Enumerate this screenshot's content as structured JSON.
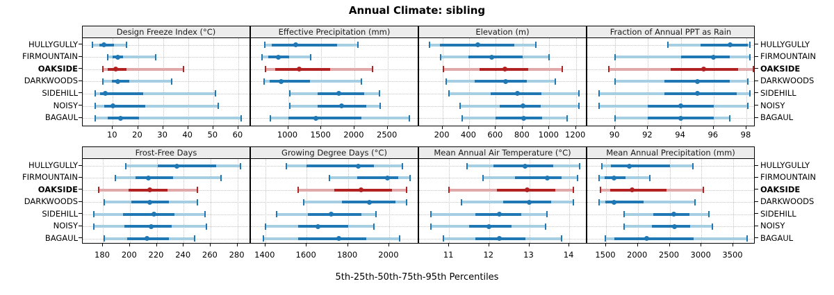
{
  "title": "Annual Climate: sibling",
  "axis_label": "5th-25th-50th-75th-95th Percentiles",
  "stations": [
    "HULLYGULLY",
    "FIRMOUNTAIN",
    "OAKSIDE",
    "DARKWOODS",
    "SIDEHILL",
    "NOISY",
    "BAGAUL"
  ],
  "highlighted_station": "OAKSIDE",
  "colors": {
    "blue": "#1f77b4",
    "blue_light": "#a6cee3",
    "red": "#b22222",
    "red_light": "#e0a8a8",
    "strip_bg": "#ececec",
    "grid": "#c4c4c4",
    "border": "#000000"
  },
  "chart_data": {
    "type": "percentile-dotplot-trellis",
    "percentiles": [
      5,
      25,
      50,
      75,
      95
    ],
    "legend_note": "whisker caps = 5th/95th, light band = 5th-95th, thick bar = 25th-75th, dot = 50th",
    "rows": [
      "HULLYGULLY",
      "FIRMOUNTAIN",
      "OAKSIDE",
      "DARKWOODS",
      "SIDEHILL",
      "NOISY",
      "BAGAUL"
    ],
    "panels": [
      {
        "title": "Design Freeze Index (°C)",
        "xlim": [
          -2,
          65
        ],
        "ticks": [
          10,
          20,
          30,
          40,
          50,
          60
        ],
        "values": {
          "HULLYGULLY": [
            2,
            4.5,
            6.5,
            10.5,
            15.5
          ],
          "FIRMOUNTAIN": [
            8,
            10,
            12,
            14,
            27
          ],
          "OAKSIDE": [
            6,
            8,
            11,
            15.5,
            38
          ],
          "DARKWOODS": [
            6,
            9.5,
            12,
            16.5,
            33.5
          ],
          "SIDEHILL": [
            3,
            5,
            7,
            22,
            51
          ],
          "NOISY": [
            3,
            6.5,
            10,
            23,
            52
          ],
          "BAGAUL": [
            3,
            8,
            13,
            20.5,
            61
          ]
        }
      },
      {
        "title": "Effective Precipitation (mm)",
        "xlim": [
          440,
          2975
        ],
        "ticks": [
          1000,
          1500,
          2000,
          2500
        ],
        "values": {
          "HULLYGULLY": [
            650,
            750,
            1110,
            1740,
            2050
          ],
          "FIRMOUNTAIN": [
            610,
            700,
            850,
            1020,
            1340
          ],
          "OAKSIDE": [
            660,
            810,
            1170,
            1640,
            2270
          ],
          "DARKWOODS": [
            640,
            720,
            890,
            1330,
            2110
          ],
          "SIDEHILL": [
            1030,
            1450,
            1760,
            2150,
            2380
          ],
          "NOISY": [
            1030,
            1440,
            1810,
            2180,
            2390
          ],
          "BAGAUL": [
            730,
            1000,
            1420,
            2100,
            2830
          ]
        }
      },
      {
        "title": "Elevation (m)",
        "xlim": [
          25,
          1285
        ],
        "ticks": [
          200,
          400,
          600,
          800,
          1000,
          1200
        ],
        "values": {
          "HULLYGULLY": [
            105,
            180,
            465,
            740,
            900
          ],
          "FIRMOUNTAIN": [
            185,
            395,
            570,
            800,
            1000
          ],
          "OAKSIDE": [
            205,
            480,
            670,
            845,
            1095
          ],
          "DARKWOODS": [
            230,
            440,
            675,
            830,
            1045
          ],
          "SIDEHILL": [
            250,
            560,
            760,
            940,
            1220
          ],
          "NOISY": [
            330,
            630,
            805,
            935,
            1220
          ],
          "BAGAUL": [
            350,
            595,
            810,
            945,
            1135
          ]
        }
      },
      {
        "title": "Fraction of Annual PPT as Rain",
        "xlim": [
          88.3,
          98.55
        ],
        "ticks": [
          90,
          92,
          94,
          96,
          98
        ],
        "values": {
          "HULLYGULLY": [
            93.2,
            95.2,
            97,
            98.1,
            98.2
          ],
          "FIRMOUNTAIN": [
            90,
            94,
            96,
            97,
            98.2
          ],
          "OAKSIDE": [
            89.6,
            93.4,
            95.4,
            97.5,
            98.4
          ],
          "DARKWOODS": [
            90,
            93,
            95,
            97,
            98.1
          ],
          "SIDEHILL": [
            89,
            93,
            95,
            97.4,
            98.2
          ],
          "NOISY": [
            89,
            92,
            94,
            96,
            98.1
          ],
          "BAGAUL": [
            90,
            92,
            94,
            96,
            97
          ]
        }
      },
      {
        "title": "Frost-Free Days",
        "xlim": [
          165,
          290
        ],
        "ticks": [
          180,
          200,
          220,
          240,
          260,
          280
        ],
        "values": {
          "HULLYGULLY": [
            197,
            221,
            235,
            264,
            282
          ],
          "FIRMOUNTAIN": [
            189,
            204,
            214,
            232,
            268
          ],
          "OAKSIDE": [
            177,
            199,
            215,
            228,
            250
          ],
          "DARKWOODS": [
            181,
            201,
            215,
            229,
            250
          ],
          "SIDEHILL": [
            173,
            195,
            218,
            233,
            256
          ],
          "NOISY": [
            173,
            196,
            216,
            231,
            257
          ],
          "BAGAUL": [
            181,
            198,
            213,
            229,
            248
          ]
        }
      },
      {
        "title": "Growing Degree Days (°C)",
        "xlim": [
          1330,
          2145
        ],
        "ticks": [
          1400,
          1600,
          1800,
          2000
        ],
        "values": {
          "HULLYGULLY": [
            1500,
            1600,
            1850,
            1925,
            2065
          ],
          "FIRMOUNTAIN": [
            1710,
            1845,
            1990,
            2045,
            2100
          ],
          "OAKSIDE": [
            1560,
            1735,
            1865,
            2015,
            2085
          ],
          "DARKWOODS": [
            1585,
            1770,
            1905,
            2030,
            2085
          ],
          "SIDEHILL": [
            1455,
            1605,
            1720,
            1865,
            1935
          ],
          "NOISY": [
            1400,
            1560,
            1655,
            1800,
            1925
          ],
          "BAGAUL": [
            1390,
            1560,
            1755,
            1890,
            2050
          ]
        }
      },
      {
        "title": "Mean Annual Air Temperature (°C)",
        "xlim": [
          10.25,
          14.45
        ],
        "ticks": [
          11,
          12,
          13,
          14
        ],
        "values": {
          "HULLYGULLY": [
            11.45,
            12.1,
            12.9,
            13.6,
            14.25
          ],
          "FIRMOUNTAIN": [
            11.85,
            12.65,
            13.45,
            13.8,
            14.2
          ],
          "OAKSIDE": [
            11.0,
            12.2,
            12.95,
            13.65,
            14.1
          ],
          "DARKWOODS": [
            11.3,
            12.35,
            13.0,
            13.55,
            14.1
          ],
          "SIDEHILL": [
            10.55,
            11.65,
            12.25,
            12.8,
            13.45
          ],
          "NOISY": [
            10.55,
            11.5,
            12.0,
            12.55,
            13.4
          ],
          "BAGAUL": [
            10.85,
            11.65,
            12.25,
            12.9,
            13.8
          ]
        }
      },
      {
        "title": "Mean Annual Precipitation (mm)",
        "xlim": [
          1205,
          3850
        ],
        "ticks": [
          1500,
          2000,
          2500,
          3000,
          3500
        ],
        "values": {
          "HULLYGULLY": [
            1435,
            1575,
            1865,
            2510,
            2865
          ],
          "FIRMOUNTAIN": [
            1390,
            1480,
            1620,
            1805,
            2190
          ],
          "OAKSIDE": [
            1415,
            1570,
            1910,
            2455,
            3030
          ],
          "DARKWOODS": [
            1390,
            1490,
            1630,
            2090,
            2900
          ],
          "SIDEHILL": [
            1780,
            2245,
            2560,
            2810,
            3115
          ],
          "NOISY": [
            1780,
            2220,
            2575,
            2820,
            3175
          ],
          "BAGAUL": [
            1490,
            1635,
            2140,
            2875,
            3715
          ]
        }
      }
    ]
  }
}
